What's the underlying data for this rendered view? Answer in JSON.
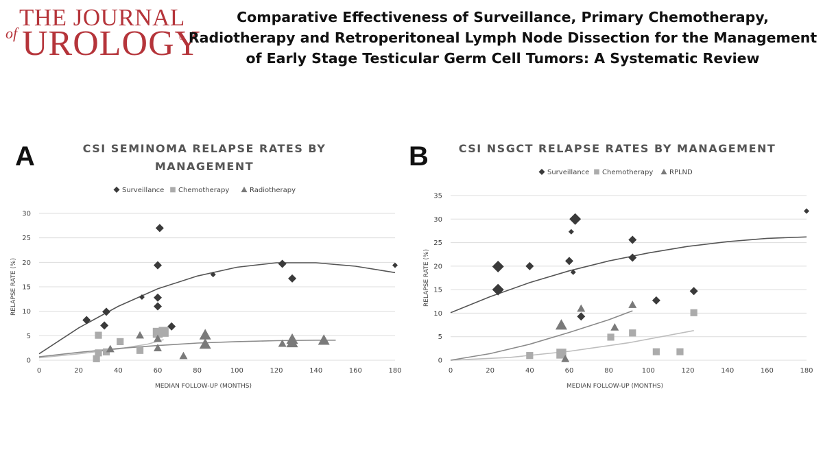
{
  "header": {
    "logo_the": "THE JOURNAL",
    "logo_of": "of",
    "logo_urology": "UROLOGY",
    "logo_reg": "®",
    "title": "Comparative Effectiveness of Surveillance, Primary Chemotherapy, Radiotherapy and Retroperitoneal Lymph Node Dissection for the Management of Early Stage Testicular Germ Cell Tumors: A Systematic Review"
  },
  "colors": {
    "logo_red": "#b5343a",
    "surveillance": "#3a3a3a",
    "chemotherapy": "#ababab",
    "third": "#7a7a7a",
    "gridline": "#dcdcdc"
  },
  "chart_data": [
    {
      "panel": "A",
      "type": "scatter",
      "title": [
        "CSI SEMINOMA RELAPSE RATES BY",
        "MANAGEMENT"
      ],
      "xlabel": "MEDIAN FOLLOW-UP (MONTHS)",
      "ylabel": "RELAPSE RATE (%)",
      "xlim": [
        0,
        180
      ],
      "ylim": [
        0,
        30
      ],
      "xticks": [
        0,
        20,
        40,
        60,
        80,
        100,
        120,
        140,
        160,
        180
      ],
      "yticks": [
        0,
        5,
        10,
        15,
        20,
        25,
        30
      ],
      "grid": "horizontal",
      "legend_position": "top",
      "series": [
        {
          "name": "Surveillance",
          "marker": "diamond",
          "points": [
            [
              24,
              8.2,
              2
            ],
            [
              33,
              7.1,
              2
            ],
            [
              34,
              9.9,
              2
            ],
            [
              52,
              12.9,
              1
            ],
            [
              60,
              19.4,
              2
            ],
            [
              61,
              27,
              2
            ],
            [
              60,
              12.8,
              2
            ],
            [
              60,
              11,
              2
            ],
            [
              67,
              6.9,
              2
            ],
            [
              88,
              17.5,
              1
            ],
            [
              123,
              19.7,
              2
            ],
            [
              128,
              16.7,
              2
            ],
            [
              180,
              19.4,
              1
            ]
          ],
          "trendline": [
            [
              0,
              1.3
            ],
            [
              20,
              6.6
            ],
            [
              40,
              11
            ],
            [
              60,
              14.6
            ],
            [
              80,
              17.2
            ],
            [
              100,
              19
            ],
            [
              120,
              19.9
            ],
            [
              140,
              19.9
            ],
            [
              160,
              19.2
            ],
            [
              180,
              17.9
            ]
          ]
        },
        {
          "name": "Chemotherapy",
          "marker": "square",
          "points": [
            [
              29,
              0.3,
              2
            ],
            [
              30,
              5.1,
              2
            ],
            [
              30,
              1.5,
              2
            ],
            [
              34,
              1.7,
              2
            ],
            [
              41,
              3.8,
              2
            ],
            [
              51,
              2,
              2
            ],
            [
              60,
              5.6,
              3
            ],
            [
              63,
              5.8,
              3
            ]
          ],
          "trendline": [
            [
              0,
              0.5
            ],
            [
              20,
              1.3
            ],
            [
              40,
              2.3
            ],
            [
              55,
              3.3
            ],
            [
              63,
              4.2
            ]
          ]
        },
        {
          "name": "Radiotherapy",
          "marker": "triangle",
          "points": [
            [
              36,
              2.3,
              2
            ],
            [
              51,
              5.1,
              2
            ],
            [
              60,
              2.5,
              2
            ],
            [
              60,
              4.4,
              2
            ],
            [
              73,
              0.9,
              2
            ],
            [
              84,
              3.3,
              3
            ],
            [
              84,
              5.2,
              3
            ],
            [
              123,
              3.4,
              2
            ],
            [
              128,
              4.3,
              3
            ],
            [
              128,
              3.6,
              3
            ],
            [
              144,
              4.1,
              3
            ]
          ],
          "trendline": [
            [
              0,
              0.7
            ],
            [
              20,
              1.6
            ],
            [
              40,
              2.4
            ],
            [
              60,
              3
            ],
            [
              80,
              3.5
            ],
            [
              100,
              3.8
            ],
            [
              120,
              4
            ],
            [
              140,
              4.1
            ],
            [
              150,
              4.1
            ]
          ]
        }
      ]
    },
    {
      "panel": "B",
      "type": "scatter",
      "title": [
        "CSI NSGCT RELAPSE RATES BY MANAGEMENT"
      ],
      "xlabel": "MEDIAN FOLLOW-UP (MONTHS)",
      "ylabel": "RELAPSE RATE (%)",
      "xlim": [
        0,
        180
      ],
      "ylim": [
        0,
        35
      ],
      "xticks": [
        0,
        20,
        40,
        60,
        80,
        100,
        120,
        140,
        160,
        180
      ],
      "yticks": [
        0,
        5,
        10,
        15,
        20,
        25,
        30,
        35
      ],
      "grid": "horizontal",
      "legend_position": "top",
      "series": [
        {
          "name": "Surveillance",
          "marker": "diamond",
          "points": [
            [
              24,
              19.9,
              3
            ],
            [
              24,
              15,
              3
            ],
            [
              40,
              20,
              2
            ],
            [
              60,
              21.1,
              2
            ],
            [
              61,
              27.3,
              1
            ],
            [
              62,
              18.7,
              1
            ],
            [
              63,
              30,
              3
            ],
            [
              66,
              9.3,
              2
            ],
            [
              92,
              25.6,
              2
            ],
            [
              92,
              21.8,
              2
            ],
            [
              104,
              12.7,
              2
            ],
            [
              123,
              14.7,
              2
            ],
            [
              180,
              31.7,
              1
            ]
          ],
          "trendline": [
            [
              0,
              10.1
            ],
            [
              20,
              13.5
            ],
            [
              40,
              16.5
            ],
            [
              60,
              19
            ],
            [
              80,
              21.1
            ],
            [
              100,
              22.8
            ],
            [
              120,
              24.2
            ],
            [
              140,
              25.2
            ],
            [
              160,
              25.9
            ],
            [
              180,
              26.2
            ]
          ]
        },
        {
          "name": "Chemotherapy",
          "marker": "square",
          "points": [
            [
              40,
              1,
              2
            ],
            [
              56,
              1.4,
              3
            ],
            [
              81,
              4.9,
              2
            ],
            [
              92,
              5.8,
              2
            ],
            [
              104,
              1.8,
              2
            ],
            [
              116,
              1.8,
              2
            ],
            [
              123,
              10.1,
              2
            ]
          ],
          "trendline": [
            [
              0,
              0
            ],
            [
              30,
              0.6
            ],
            [
              60,
              1.9
            ],
            [
              90,
              3.7
            ],
            [
              123,
              6.3
            ]
          ]
        },
        {
          "name": "RPLND",
          "marker": "triangle",
          "points": [
            [
              56,
              7.5,
              3
            ],
            [
              58,
              0.3,
              2
            ],
            [
              66,
              11,
              2
            ],
            [
              83,
              7,
              2
            ],
            [
              92,
              11.8,
              2
            ]
          ],
          "trendline": [
            [
              0,
              0
            ],
            [
              20,
              1.4
            ],
            [
              40,
              3.4
            ],
            [
              60,
              5.9
            ],
            [
              80,
              8.6
            ],
            [
              92,
              10.5
            ]
          ]
        }
      ]
    }
  ]
}
